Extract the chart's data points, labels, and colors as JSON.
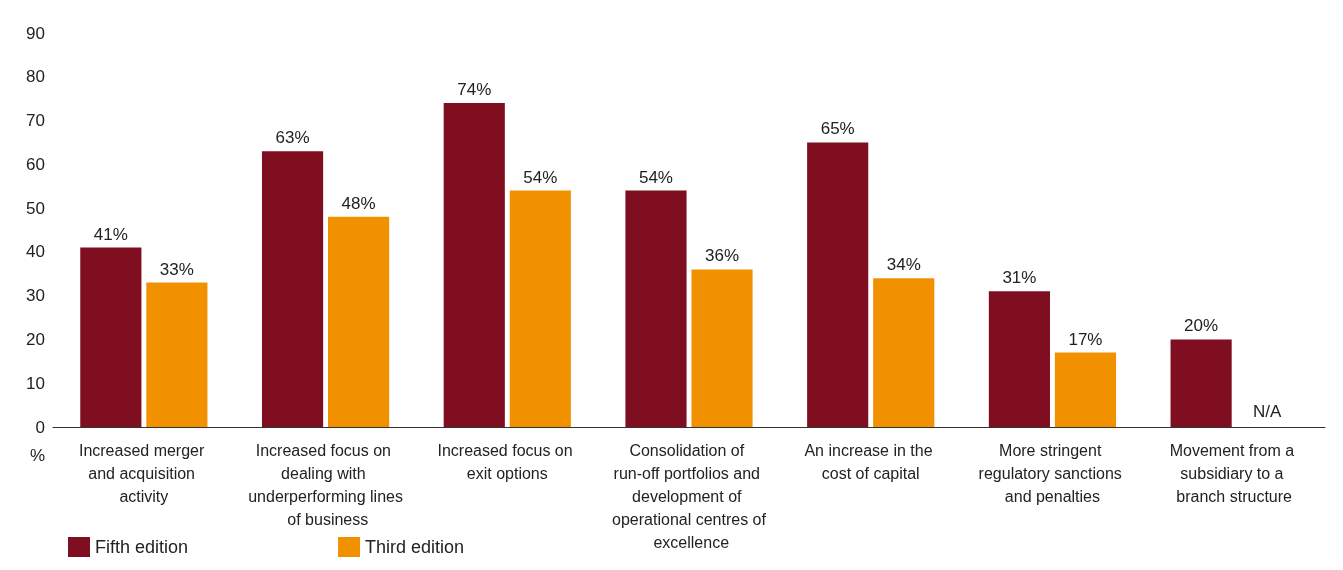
{
  "chart_data": {
    "type": "bar",
    "ylabel": "%",
    "categories": [
      "Increased merger and acquisition activity",
      "Increased focus on dealing with underperforming lines of business",
      "Increased focus on exit options",
      "Consolidation of run-off portfolios and development of operational centres of excellence",
      "An increase in the cost of capital",
      "More stringent regulatory sanctions and penalties",
      "Movement from a subsidiary to a branch structure"
    ],
    "series": [
      {
        "name": "Fifth edition",
        "color": "#7f0e20",
        "values": [
          41,
          63,
          74,
          54,
          65,
          31,
          20
        ],
        "value_labels": [
          "41%",
          "63%",
          "74%",
          "54%",
          "65%",
          "31%",
          "20%"
        ]
      },
      {
        "name": "Third edition",
        "color": "#f29100",
        "values": [
          33,
          48,
          54,
          36,
          34,
          17,
          null
        ],
        "value_labels": [
          "33%",
          "48%",
          "54%",
          "36%",
          "34%",
          "17%",
          null
        ]
      }
    ],
    "annotations": [
      {
        "text": "N/A",
        "x": "Movement from a subsidiary to a branch structure",
        "y": 0
      }
    ],
    "ylim": [
      0,
      90
    ],
    "yticks": [
      0,
      10,
      20,
      30,
      40,
      50,
      60,
      70,
      80,
      90
    ],
    "grid": false,
    "legend": "bottom left"
  }
}
